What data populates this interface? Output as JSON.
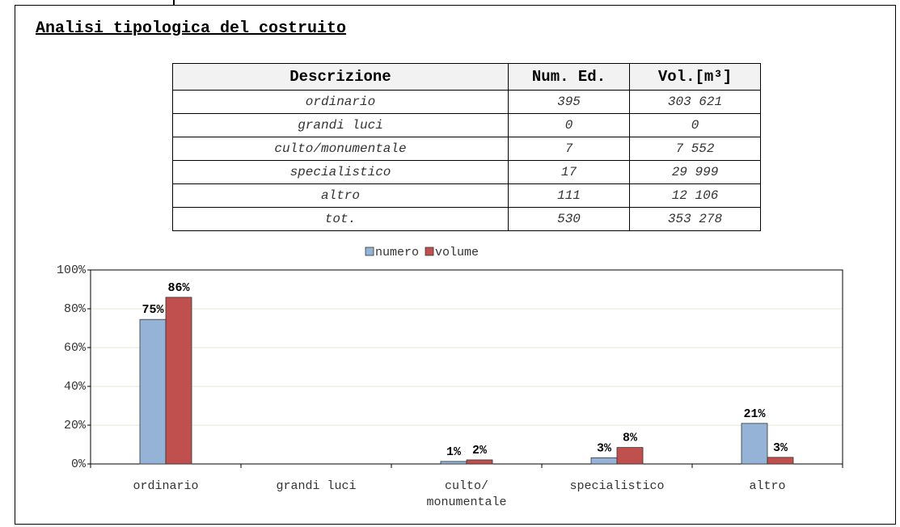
{
  "heading": "Analisi tipologica del costruito",
  "table": {
    "header": [
      "Descrizione",
      "Num. Ed.",
      "Vol.[m³]"
    ],
    "rows": [
      [
        "ordinario",
        "395",
        "303 621"
      ],
      [
        "grandi luci",
        "0",
        "0"
      ],
      [
        "culto/monumentale",
        "7",
        "7 552"
      ],
      [
        "specialistico",
        "17",
        "29 999"
      ],
      [
        "altro",
        "111",
        "12 106"
      ],
      [
        "tot.",
        "530",
        "353 278"
      ]
    ]
  },
  "chart_data": {
    "type": "bar",
    "categories": [
      "ordinario",
      "grandi luci",
      "culto/monumentale",
      "specialistico",
      "altro"
    ],
    "series": [
      {
        "name": "numero",
        "color": "#95b3d7",
        "values": [
          74.5,
          0,
          1.3,
          3.2,
          20.9
        ],
        "value_labels": [
          "75%",
          null,
          "1%",
          "3%",
          "21%"
        ]
      },
      {
        "name": "volume",
        "color": "#c0504d",
        "values": [
          85.9,
          0,
          2.1,
          8.5,
          3.4
        ],
        "value_labels": [
          "86%",
          null,
          "2%",
          "8%",
          "3%"
        ]
      }
    ],
    "ylim": [
      0,
      100
    ],
    "yticks": [
      {
        "value": 0,
        "label": "0%"
      },
      {
        "value": 20,
        "label": "20%"
      },
      {
        "value": 40,
        "label": "40%"
      },
      {
        "value": 60,
        "label": "60%"
      },
      {
        "value": 80,
        "label": "80%"
      },
      {
        "value": 100,
        "label": "100%"
      }
    ],
    "grid": true,
    "legend": "top"
  }
}
